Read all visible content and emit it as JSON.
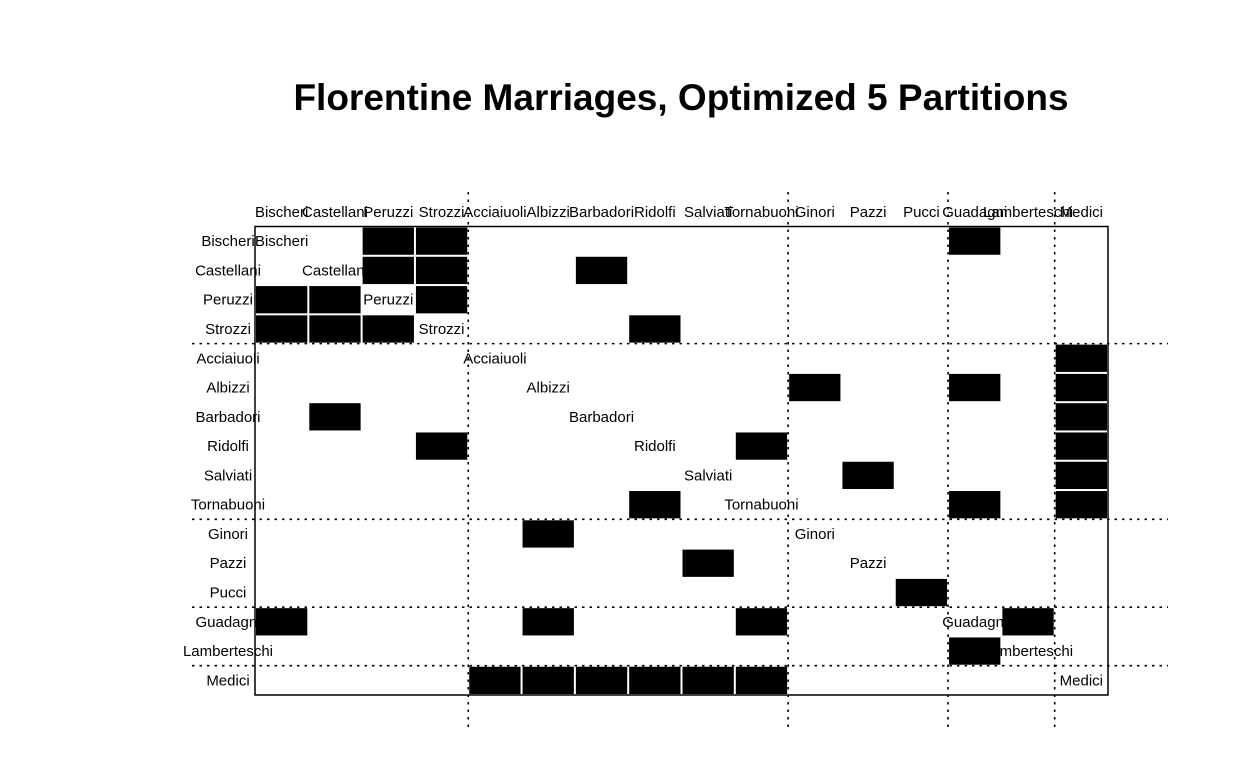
{
  "chart_data": {
    "type": "heatmap",
    "title": "Florentine Marriages, Optimized 5 Partitions",
    "order": [
      "Bischeri",
      "Castellani",
      "Peruzzi",
      "Strozzi",
      "Acciaiuoli",
      "Albizzi",
      "Barbadori",
      "Ridolfi",
      "Salviati",
      "Tornabuoni",
      "Ginori",
      "Pazzi",
      "Pucci",
      "Guadagni",
      "Lamberteschi",
      "Medici"
    ],
    "partitions": [
      [
        "Bischeri",
        "Castellani",
        "Peruzzi",
        "Strozzi"
      ],
      [
        "Acciaiuoli",
        "Albizzi",
        "Barbadori",
        "Ridolfi",
        "Salviati",
        "Tornabuoni"
      ],
      [
        "Ginori",
        "Pazzi",
        "Pucci"
      ],
      [
        "Guadagni",
        "Lamberteschi"
      ],
      [
        "Medici"
      ]
    ],
    "col_partitions": [
      [
        "Bischeri",
        "Castellani",
        "Peruzzi",
        "Strozzi"
      ],
      [
        "Acciaiuoli",
        "Albizzi",
        "Barbadori",
        "Ridolfi",
        "Salviati",
        "Tornabuoni"
      ],
      [
        "Ginori",
        "Pazzi",
        "Pucci"
      ],
      [
        "Guadagni",
        "Lamberteschi"
      ],
      [
        "Medici"
      ]
    ],
    "row_partitions": [
      [
        "Bischeri",
        "Castellani",
        "Peruzzi",
        "Strozzi"
      ],
      [
        "Acciaiuoli",
        "Albizzi",
        "Barbadori",
        "Ridolfi",
        "Salviati",
        "Tornabuoni"
      ],
      [
        "Ginori",
        "Pazzi",
        "Pucci"
      ],
      [
        "Guadagni",
        "Lamberteschi"
      ],
      [
        "Medici"
      ]
    ],
    "filled_cells": [
      [
        "Bischeri",
        "Peruzzi"
      ],
      [
        "Bischeri",
        "Strozzi"
      ],
      [
        "Bischeri",
        "Guadagni"
      ],
      [
        "Castellani",
        "Peruzzi"
      ],
      [
        "Castellani",
        "Strozzi"
      ],
      [
        "Castellani",
        "Barbadori"
      ],
      [
        "Peruzzi",
        "Bischeri"
      ],
      [
        "Peruzzi",
        "Castellani"
      ],
      [
        "Peruzzi",
        "Strozzi"
      ],
      [
        "Strozzi",
        "Bischeri"
      ],
      [
        "Strozzi",
        "Castellani"
      ],
      [
        "Strozzi",
        "Peruzzi"
      ],
      [
        "Strozzi",
        "Ridolfi"
      ],
      [
        "Acciaiuoli",
        "Medici"
      ],
      [
        "Albizzi",
        "Ginori"
      ],
      [
        "Albizzi",
        "Guadagni"
      ],
      [
        "Albizzi",
        "Medici"
      ],
      [
        "Barbadori",
        "Castellani"
      ],
      [
        "Barbadori",
        "Medici"
      ],
      [
        "Ridolfi",
        "Strozzi"
      ],
      [
        "Ridolfi",
        "Tornabuoni"
      ],
      [
        "Ridolfi",
        "Medici"
      ],
      [
        "Salviati",
        "Pazzi"
      ],
      [
        "Salviati",
        "Medici"
      ],
      [
        "Tornabuoni",
        "Ridolfi"
      ],
      [
        "Tornabuoni",
        "Guadagni"
      ],
      [
        "Tornabuoni",
        "Medici"
      ],
      [
        "Ginori",
        "Albizzi"
      ],
      [
        "Pazzi",
        "Salviati"
      ],
      [
        "Pucci",
        "Pucci"
      ],
      [
        "Guadagni",
        "Bischeri"
      ],
      [
        "Guadagni",
        "Albizzi"
      ],
      [
        "Guadagni",
        "Tornabuoni"
      ],
      [
        "Guadagni",
        "Lamberteschi"
      ],
      [
        "Lamberteschi",
        "Guadagni"
      ],
      [
        "Medici",
        "Acciaiuoli"
      ],
      [
        "Medici",
        "Albizzi"
      ],
      [
        "Medici",
        "Barbadori"
      ],
      [
        "Medici",
        "Ridolfi"
      ],
      [
        "Medici",
        "Salviati"
      ],
      [
        "Medici",
        "Tornabuoni"
      ]
    ],
    "fill_color": "#000000",
    "divider_style": "dotted"
  }
}
